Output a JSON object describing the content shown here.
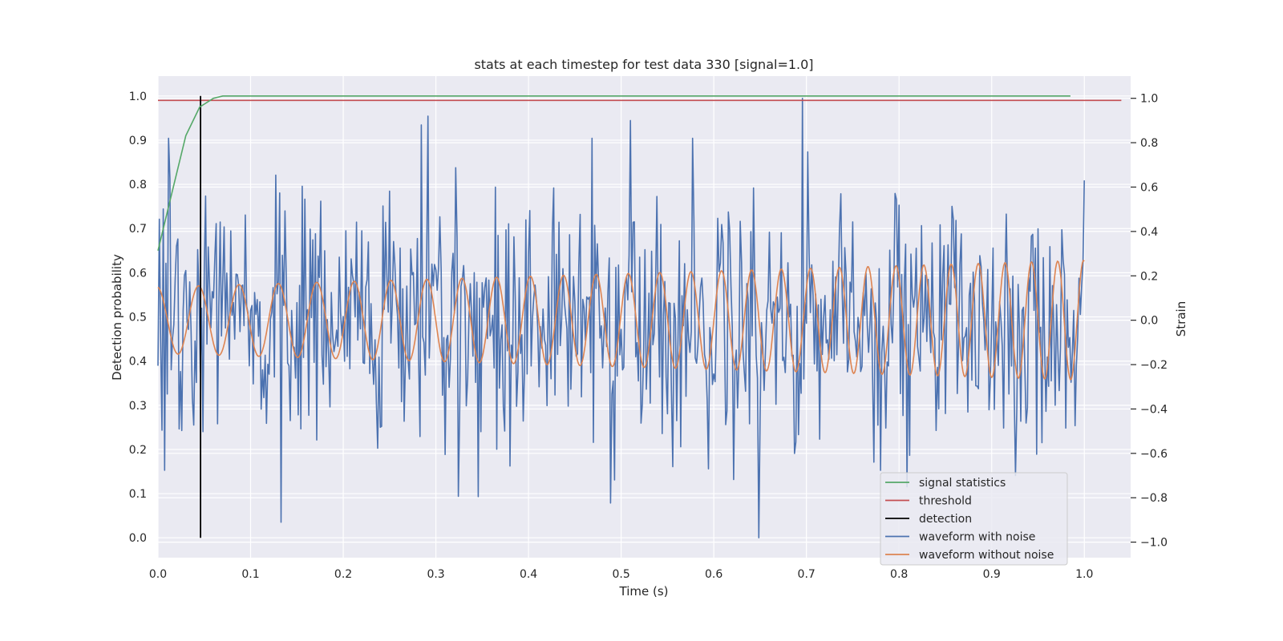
{
  "chart_data": {
    "type": "line",
    "title": "stats at each timestep for test data 330 [signal=1.0]",
    "xlabel": "Time (s)",
    "ylabel": "Detection probability",
    "y2label": "Strain",
    "xlim": [
      0.0,
      1.05
    ],
    "ylim": [
      -0.045,
      1.045
    ],
    "y2lim": [
      -1.07,
      1.1
    ],
    "grid": true,
    "legend_position": "lower-right",
    "x_ticks": [
      0.0,
      0.1,
      0.2,
      0.3,
      0.4,
      0.5,
      0.6,
      0.7,
      0.8,
      0.9,
      1.0
    ],
    "x_tick_labels": [
      "0.0",
      "0.1",
      "0.2",
      "0.3",
      "0.4",
      "0.5",
      "0.6",
      "0.7",
      "0.8",
      "0.9",
      "1.0"
    ],
    "y_ticks": [
      0.0,
      0.1,
      0.2,
      0.3,
      0.4,
      0.5,
      0.6,
      0.7,
      0.8,
      0.9,
      1.0
    ],
    "y_tick_labels": [
      "0.0",
      "0.1",
      "0.2",
      "0.3",
      "0.4",
      "0.5",
      "0.6",
      "0.7",
      "0.8",
      "0.9",
      "1.0"
    ],
    "y2_ticks": [
      -1.0,
      -0.8,
      -0.6,
      -0.4,
      -0.2,
      0.0,
      0.2,
      0.4,
      0.6,
      0.8,
      1.0
    ],
    "y2_tick_labels": [
      "−1.0",
      "−0.8",
      "−0.6",
      "−0.4",
      "−0.2",
      "0.0",
      "0.2",
      "0.4",
      "0.6",
      "0.8",
      "1.0"
    ],
    "series": [
      {
        "name": "signal statistics",
        "axis": "left",
        "color": "#55a868",
        "x": [
          0.0,
          0.015,
          0.03,
          0.045,
          0.06,
          0.07,
          0.985
        ],
        "values": [
          0.65,
          0.78,
          0.91,
          0.975,
          0.995,
          1.0,
          1.0
        ]
      },
      {
        "name": "threshold",
        "axis": "left",
        "color": "#c44e52",
        "x": [
          0.0,
          1.04
        ],
        "values": [
          0.99,
          0.99
        ]
      },
      {
        "name": "detection",
        "axis": "left",
        "color": "#000000",
        "x": [
          0.046,
          0.046
        ],
        "values": [
          0.0,
          1.0
        ]
      },
      {
        "name": "waveform with noise",
        "axis": "right",
        "color": "#4c72b0",
        "t_start": 0.0,
        "t_end": 1.0,
        "amplitude": 0.28,
        "peaks": [
          [
            0.0125,
            0.64
          ],
          [
            0.133,
            -0.91
          ],
          [
            0.284,
            0.88
          ],
          [
            0.292,
            0.92
          ],
          [
            0.51,
            0.9
          ],
          [
            0.649,
            -0.98
          ],
          [
            0.696,
            1.0
          ],
          [
            0.555,
            -0.66
          ],
          [
            0.925,
            -0.7
          ]
        ]
      },
      {
        "name": "waveform without noise",
        "axis": "right",
        "color": "#dd8452",
        "t_start": 0.0,
        "t_end": 1.0,
        "amplitude_start": 0.15,
        "amplitude_end": 0.27,
        "freq_start": 22,
        "freq_end": 36
      }
    ],
    "legend": [
      "signal statistics",
      "threshold",
      "detection",
      "waveform with noise",
      "waveform without noise"
    ]
  }
}
